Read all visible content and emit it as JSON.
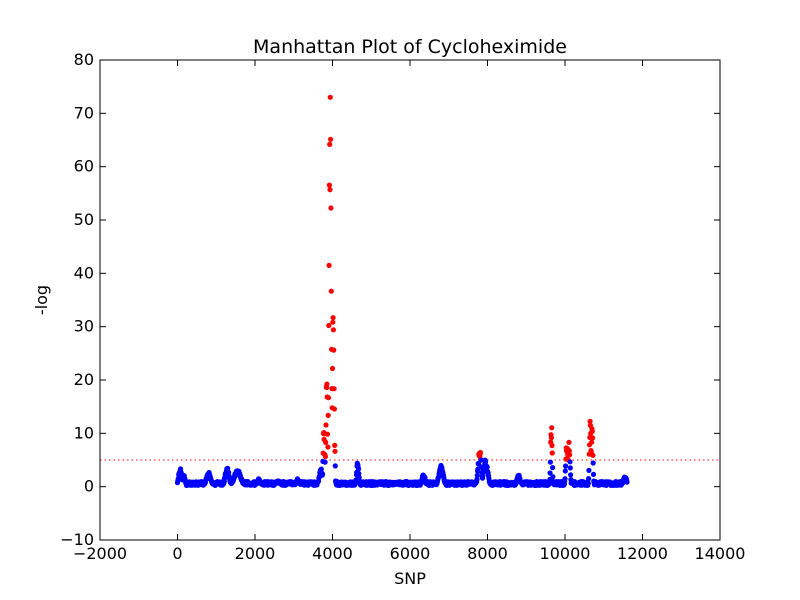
{
  "chart_data": {
    "type": "scatter",
    "title": "Manhattan Plot of Cycloheximide",
    "xlabel": "SNP",
    "ylabel": "-log",
    "xlim": [
      -2000,
      14000
    ],
    "ylim": [
      -10,
      80
    ],
    "xticks": [
      -2000,
      0,
      2000,
      4000,
      6000,
      8000,
      10000,
      12000,
      14000
    ],
    "yticks": [
      -10,
      0,
      10,
      20,
      30,
      40,
      50,
      60,
      70,
      80
    ],
    "threshold": 5,
    "grid": false,
    "colors": {
      "below_threshold": "#0000ff",
      "above_threshold": "#ff0000",
      "threshold_line": "#ff0000"
    },
    "snp_range": [
      0,
      11600
    ],
    "peaks": [
      {
        "center": 70,
        "width": 60,
        "height": 3.5
      },
      {
        "center": 160,
        "width": 50,
        "height": 2.3
      },
      {
        "center": 800,
        "width": 80,
        "height": 2.8
      },
      {
        "center": 1280,
        "width": 70,
        "height": 3.8
      },
      {
        "center": 1550,
        "width": 120,
        "height": 3.2
      },
      {
        "center": 2100,
        "width": 60,
        "height": 1.5
      },
      {
        "center": 2600,
        "width": 60,
        "height": 1.3
      },
      {
        "center": 3100,
        "width": 60,
        "height": 1.5
      },
      {
        "center": 3700,
        "width": 60,
        "height": 3.5
      },
      {
        "center": 3780,
        "width": 30,
        "height": 12
      },
      {
        "center": 3850,
        "width": 30,
        "height": 22
      },
      {
        "center": 3940,
        "width": 40,
        "height": 74
      },
      {
        "center": 4020,
        "width": 30,
        "height": 38
      },
      {
        "center": 4060,
        "width": 15,
        "height": 8
      },
      {
        "center": 4650,
        "width": 40,
        "height": 4.8
      },
      {
        "center": 6350,
        "width": 60,
        "height": 2.5
      },
      {
        "center": 6800,
        "width": 80,
        "height": 4.0
      },
      {
        "center": 7800,
        "width": 60,
        "height": 7.3
      },
      {
        "center": 7950,
        "width": 80,
        "height": 5.2
      },
      {
        "center": 8800,
        "width": 60,
        "height": 2.3
      },
      {
        "center": 9650,
        "width": 30,
        "height": 12
      },
      {
        "center": 10050,
        "width": 40,
        "height": 9.3
      },
      {
        "center": 10100,
        "width": 40,
        "height": 8.5
      },
      {
        "center": 10650,
        "width": 30,
        "height": 13
      },
      {
        "center": 10700,
        "width": 30,
        "height": 11.5
      },
      {
        "center": 11550,
        "width": 60,
        "height": 2.0
      }
    ],
    "baseline": 0.6
  }
}
